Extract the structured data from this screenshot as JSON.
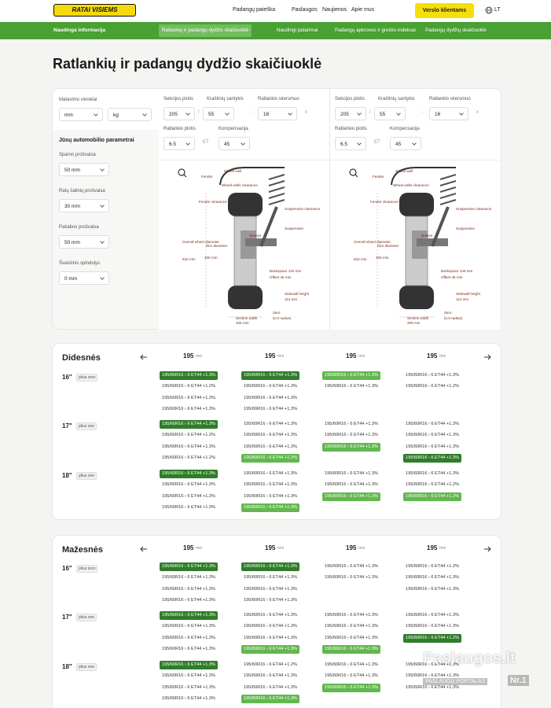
{
  "header": {
    "logo": "RATAI VISIEMS",
    "nav": [
      "Padangų paieška",
      "Paslaugos",
      "Naujienos",
      "Apie mus"
    ],
    "cta": "Verslo klientams",
    "lang": "LT"
  },
  "subnav": {
    "title": "Naudinga informacija",
    "tabs": [
      "Ratlankių ir padangų dydžio skaičiuoklė",
      "Naudingi patarimai",
      "Padangų apkrovos ir greičio indeksai",
      "Padangų dydžių skaičiuoklė"
    ]
  },
  "title": "Ratlankių ir padangų dydžio skaičiuoklė",
  "calculator": {
    "units_label": "Matavimo vienetai",
    "units": [
      "mm",
      "kg"
    ],
    "params_title": "Jūsų automobilio parametrai",
    "params": [
      {
        "label": "Sparno prošvaisa",
        "value": "50 mm"
      },
      {
        "label": "Ratų šalinių prošvaisa",
        "value": "30 mm"
      },
      {
        "label": "Pakabos prošvaisa",
        "value": "50 mm"
      },
      {
        "label": "Švaistinis spindulys",
        "value": "0 mm"
      }
    ],
    "tires": [
      {
        "labels": [
          "Sekcijos plotis",
          "Kraštinių santykis",
          "Ratlankio skersmuo",
          "Ratlankio plotis",
          "Kompensacija"
        ],
        "values": [
          "205",
          "55",
          "16",
          "6.5",
          "45"
        ],
        "sep": [
          "/",
          "-",
          "x",
          "ET"
        ]
      },
      {
        "labels": [
          "Sekcijos plotis",
          "Kraštinių santykis",
          "Ratlankio skersmuo",
          "Ratlankio plotis",
          "Kompensacija"
        ],
        "values": [
          "205",
          "55",
          "16",
          "6.5",
          "45"
        ],
        "sep": [
          "/",
          "-",
          "x",
          "ET"
        ]
      }
    ],
    "diagram_labels": [
      "Fender",
      "Wheel well",
      "Wheel wells clearance",
      "Fender clearance",
      "Suspension clearance",
      "Suspension",
      "Brakes",
      "Overall wheel diameter",
      "632 mm",
      "Rim diameter",
      "406 mm",
      "Backspace 140 mm",
      "Offset 45 mm",
      "Sidewall height",
      "113 mm",
      "Section width",
      "205 mm",
      "Zero",
      "(0.0 radius)"
    ]
  },
  "results": [
    {
      "title": "Didesnės",
      "columns": [
        "195",
        "195",
        "195",
        "195"
      ],
      "unit": "mm",
      "groups": [
        {
          "size": "16\"",
          "badge": "plius zero",
          "cells": [
            [
              {
                "text": "195/60R16 › 6 ET44 +1.3%",
                "style": "dark"
              },
              {
                "text": "195/60R16 › 6 ET44 +1.2%"
              },
              {
                "text": "195/60R16 › 6 ET44 +1.3%"
              },
              {
                "text": "195/60R16 › 6 ET44 +1.3%"
              }
            ],
            [
              {
                "text": "195/60R16 › 6 ET44 +1.3%",
                "style": "dark"
              },
              {
                "text": "195/60R16 › 6 ET44 +1.3%"
              },
              {
                "text": "195/60R16 › 6 ET44 +1.3%"
              },
              {
                "text": "195/60R16 › 6 ET44 +1.3%"
              }
            ],
            [
              {
                "text": "195/60R16 › 6 ET44 +1.3%",
                "style": "light"
              },
              {
                "text": "195/60R16 › 6 ET44 +1.3%"
              }
            ],
            [
              {
                "text": "195/60R16 › 6 ET44 +1.3%"
              },
              {
                "text": "195/60R16 › 6 ET44 +1.2%"
              }
            ]
          ]
        },
        {
          "size": "17\"",
          "badge": "plius one",
          "cells": [
            [
              {
                "text": "195/60R16 › 6 ET44 +1.3%",
                "style": "dark"
              },
              {
                "text": "195/60R16 › 6 ET44 +1.3%"
              },
              {
                "text": "195/60R16 › 6 ET44 +1.3%"
              },
              {
                "text": "195/60R16 › 6 ET44 +1.2%"
              }
            ],
            [
              {
                "text": "195/60R16 › 6 ET44 +1.3%"
              },
              {
                "text": "195/60R16 › 6 ET44 +1.3%"
              },
              {
                "text": "195/60R16 › 6 ET44 +1.3%"
              },
              {
                "text": "195/60R16 › 6 ET44 +1.2%",
                "style": "light"
              }
            ],
            [
              {
                "text": "195/60R16 › 6 ET44 +1.3%"
              },
              {
                "text": "195/60R16 › 6 ET44 +1.3%"
              },
              {
                "text": "195/60R16 › 6 ET44 +1.3%",
                "style": "light"
              }
            ],
            [
              {
                "text": "195/60R16 › 6 ET44 +1.3%"
              },
              {
                "text": "195/60R16 › 6 ET44 +1.3%"
              },
              {
                "text": "195/60R16 › 6 ET44 +1.3%"
              },
              {
                "text": "195/60R16 › 6 ET44 +1.3%",
                "style": "dark"
              }
            ]
          ]
        },
        {
          "size": "18\"",
          "badge": "plius one",
          "cells": [
            [
              {
                "text": "195/60R16 › 6 ET44 +1.3%",
                "style": "dark"
              },
              {
                "text": "195/60R16 › 6 ET44 +1.3%"
              },
              {
                "text": "195/60R16 › 6 ET44 +1.3%"
              },
              {
                "text": "195/60R16 › 6 ET44 +1.3%"
              }
            ],
            [
              {
                "text": "195/60R16 › 6 ET44 +1.3%"
              },
              {
                "text": "195/60R16 › 6 ET44 +1.3%"
              },
              {
                "text": "195/60R16 › 6 ET44 +1.3%"
              },
              {
                "text": "195/60R16 › 6 ET44 +1.3%",
                "style": "light"
              }
            ],
            [
              {
                "text": "195/60R16 › 6 ET44 +1.3%"
              },
              {
                "text": "195/60R16 › 6 ET44 +1.3%"
              },
              {
                "text": "195/60R16 › 6 ET44 +1.3%",
                "style": "light"
              }
            ],
            [
              {
                "text": "195/60R16 › 6 ET44 +1.3%"
              },
              {
                "text": "195/60R16 › 6 ET44 +1.2%"
              },
              {
                "text": "195/60R16 › 6 ET44 +1.2%",
                "style": "light"
              }
            ]
          ]
        }
      ]
    },
    {
      "title": "Mažesnės",
      "columns": [
        "195",
        "195",
        "195",
        "195"
      ],
      "unit": "mm",
      "groups": [
        {
          "size": "16\"",
          "badge": "plius zero",
          "cells": [
            [
              {
                "text": "195/60R16 › 6 ET44 +1.3%",
                "style": "dark"
              },
              {
                "text": "195/60R16 › 6 ET44 +1.3%"
              },
              {
                "text": "195/60R16 › 6 ET44 +1.3%"
              },
              {
                "text": "195/60R16 › 6 ET44 +1.3%"
              }
            ],
            [
              {
                "text": "195/60R16 › 6 ET44 +1.3%",
                "style": "dark"
              },
              {
                "text": "195/60R16 › 6 ET44 +1.3%"
              },
              {
                "text": "195/60R16 › 6 ET44 +1.3%"
              },
              {
                "text": "195/60R16 › 6 ET44 +1.3%"
              }
            ],
            [
              {
                "text": "195/60R16 › 6 ET44 +1.3%"
              },
              {
                "text": "195/60R16 › 6 ET44 +1.3%"
              }
            ],
            [
              {
                "text": "195/60R16 › 6 ET44 +1.2%"
              },
              {
                "text": "195/60R16 › 6 ET44 +1.3%"
              },
              {
                "text": "195/60R16 › 6 ET44 +1.3%"
              }
            ]
          ]
        },
        {
          "size": "17\"",
          "badge": "plius one",
          "cells": [
            [
              {
                "text": "195/60R16 › 6 ET44 +1.3%",
                "style": "dark"
              },
              {
                "text": "195/60R16 › 6 ET44 +1.3%"
              },
              {
                "text": "195/60R16 › 6 ET44 +1.3%"
              },
              {
                "text": "195/60R16 › 6 ET44 +1.3%"
              }
            ],
            [
              {
                "text": "195/60R16 › 6 ET44 +1.3%"
              },
              {
                "text": "195/60R16 › 6 ET44 +1.3%"
              },
              {
                "text": "195/60R16 › 6 ET44 +1.3%"
              },
              {
                "text": "195/60R16 › 6 ET44 +1.3%",
                "style": "light"
              }
            ],
            [
              {
                "text": "195/60R16 › 6 ET44 +1.3%"
              },
              {
                "text": "195/60R16 › 6 ET44 +1.3%"
              },
              {
                "text": "195/60R16 › 6 ET44 +1.3%"
              },
              {
                "text": "195/60R16 › 6 ET44 +1.3%",
                "style": "light"
              }
            ],
            [
              {
                "text": "195/60R16 › 6 ET44 +1.3%"
              },
              {
                "text": "195/60R16 › 6 ET44 +1.3%"
              },
              {
                "text": "195/60R16 › 6 ET44 +1.2%",
                "style": "dark"
              }
            ]
          ]
        },
        {
          "size": "18\"",
          "badge": "plius one",
          "cells": [
            [
              {
                "text": "195/60R16 › 6 ET44 +1.3%",
                "style": "dark"
              },
              {
                "text": "195/60R16 › 6 ET44 +1.3%"
              },
              {
                "text": "195/60R16 › 6 ET44 +1.3%"
              },
              {
                "text": "195/60R16 › 6 ET44 +1.3%"
              }
            ],
            [
              {
                "text": "195/60R16 › 6 ET44 +1.2%"
              },
              {
                "text": "195/60R16 › 6 ET44 +1.3%"
              },
              {
                "text": "195/60R16 › 6 ET44 +1.3%"
              },
              {
                "text": "195/60R16 › 6 ET44 +1.3%",
                "style": "light"
              }
            ],
            [
              {
                "text": "195/60R16 › 6 ET44 +1.3%"
              },
              {
                "text": "195/60R16 › 6 ET44 +1.3%"
              },
              {
                "text": "195/60R16 › 6 ET44 +1.3%",
                "style": "light"
              }
            ],
            [
              {
                "text": "195/60R16 › 6 ET44 +1.3%"
              },
              {
                "text": "195/60R16 › 6 ET44 +1.3%"
              },
              {
                "text": "195/60R16 › 6 ET44 +1.3%"
              }
            ]
          ]
        }
      ]
    }
  ],
  "watermark": {
    "brand": "Paslaugos.lt",
    "tagline": "PASLAUGŲ PORTALAS",
    "rank": "Nr.1"
  }
}
